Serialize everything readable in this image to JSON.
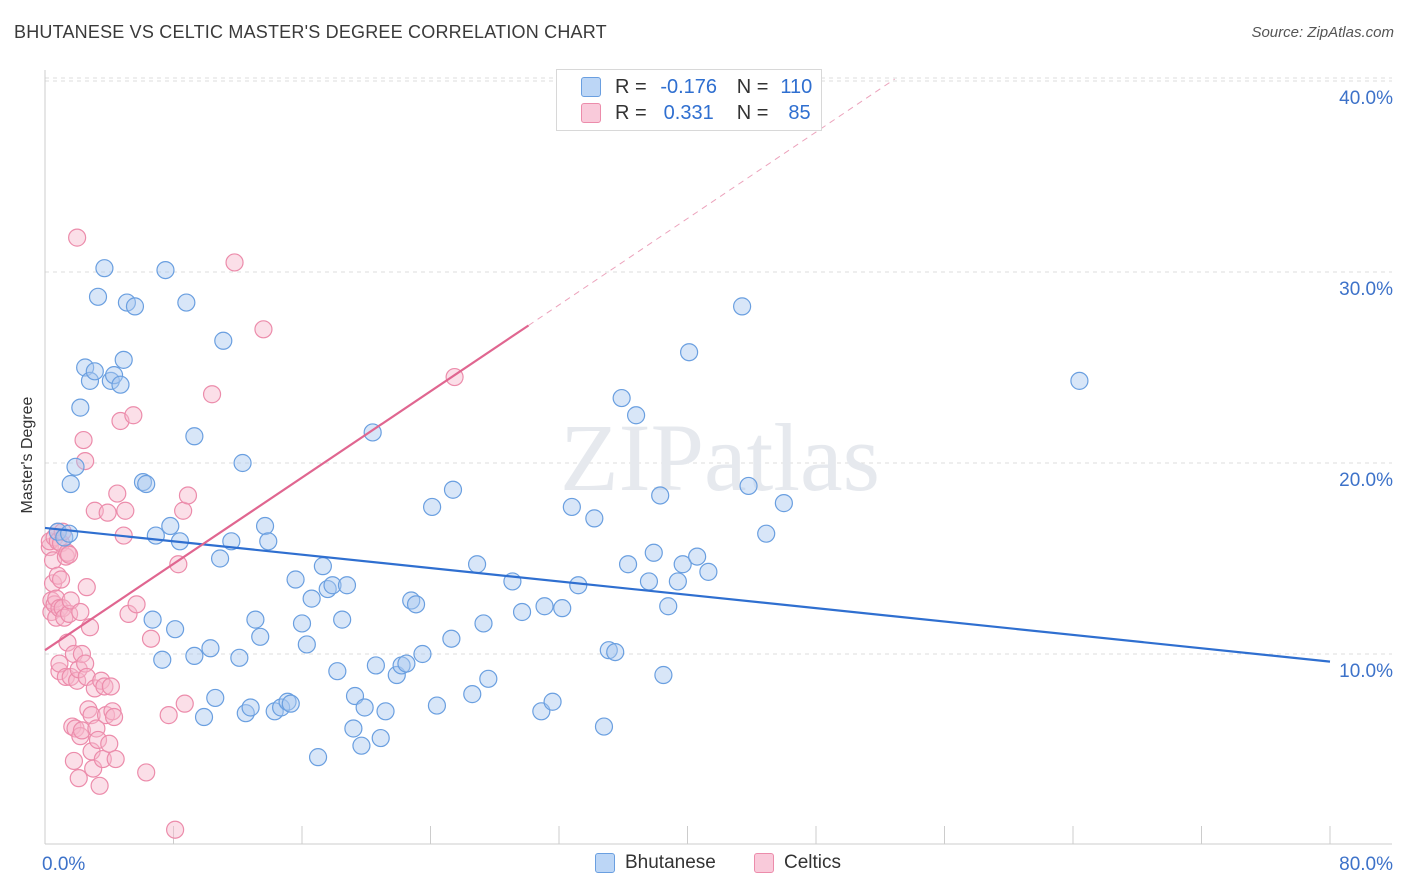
{
  "header": {
    "title": "BHUTANESE VS CELTIC MASTER'S DEGREE CORRELATION CHART",
    "source": "Source: ZipAtlas.com"
  },
  "legend": {
    "rows": [
      {
        "r_label": "R =",
        "r_value": "-0.176",
        "n_label": "N =",
        "n_value": "110"
      },
      {
        "r_label": "R =",
        "r_value": "0.331",
        "n_label": "N =",
        "n_value": "85"
      }
    ],
    "bottom": [
      "Bhutanese",
      "Celtics"
    ]
  },
  "colors": {
    "blue_fill": "#a8c8f0",
    "blue_stroke": "#6a9fe0",
    "blue_line": "#2f6fd0",
    "pink_fill": "#f6b8cc",
    "pink_stroke": "#ec8cab",
    "pink_line": "#e06690",
    "grid": "#dddddd",
    "tick_label": "#3d72c9"
  },
  "chart_data": {
    "type": "scatter",
    "title": "BHUTANESE VS CELTIC MASTER'S DEGREE CORRELATION CHART",
    "xlabel": "",
    "ylabel": "Master's Degree",
    "xlim": [
      0,
      80
    ],
    "ylim": [
      0,
      41
    ],
    "x_tick_labels": [
      "0.0%",
      "80.0%"
    ],
    "y_ticks": [
      10,
      20,
      30,
      40
    ],
    "y_tick_labels": [
      "10.0%",
      "20.0%",
      "30.0%",
      "40.0%"
    ],
    "watermark": "ZIPatlas",
    "series": [
      {
        "name": "Bhutanese",
        "r": -0.176,
        "n": 110,
        "trend": {
          "x0": 0,
          "y0": 16.6,
          "x1": 80,
          "y1": 9.6
        },
        "points": [
          [
            0.8,
            16.4
          ],
          [
            1.2,
            16.1
          ],
          [
            1.5,
            16.3
          ],
          [
            1.6,
            18.9
          ],
          [
            1.9,
            19.8
          ],
          [
            2.2,
            22.9
          ],
          [
            2.5,
            25.0
          ],
          [
            2.8,
            24.3
          ],
          [
            3.1,
            24.8
          ],
          [
            3.3,
            28.7
          ],
          [
            3.7,
            30.2
          ],
          [
            4.1,
            24.3
          ],
          [
            4.3,
            24.6
          ],
          [
            4.7,
            24.1
          ],
          [
            4.9,
            25.4
          ],
          [
            5.1,
            28.4
          ],
          [
            5.6,
            28.2
          ],
          [
            6.1,
            19.0
          ],
          [
            6.3,
            18.9
          ],
          [
            6.7,
            11.8
          ],
          [
            6.9,
            16.2
          ],
          [
            7.3,
            9.7
          ],
          [
            7.8,
            16.7
          ],
          [
            8.1,
            11.3
          ],
          [
            8.4,
            15.9
          ],
          [
            8.8,
            28.4
          ],
          [
            7.5,
            30.1
          ],
          [
            9.3,
            21.4
          ],
          [
            9.3,
            9.9
          ],
          [
            9.9,
            6.7
          ],
          [
            10.3,
            10.3
          ],
          [
            10.6,
            7.7
          ],
          [
            10.9,
            15.0
          ],
          [
            11.1,
            26.4
          ],
          [
            11.6,
            15.9
          ],
          [
            12.1,
            9.8
          ],
          [
            12.3,
            20.0
          ],
          [
            12.5,
            6.9
          ],
          [
            12.8,
            7.2
          ],
          [
            13.1,
            11.8
          ],
          [
            13.4,
            10.9
          ],
          [
            13.7,
            16.7
          ],
          [
            13.9,
            15.9
          ],
          [
            14.3,
            7.0
          ],
          [
            14.7,
            7.2
          ],
          [
            15.1,
            7.5
          ],
          [
            15.3,
            7.4
          ],
          [
            15.6,
            13.9
          ],
          [
            16.0,
            11.6
          ],
          [
            16.3,
            10.5
          ],
          [
            16.6,
            12.9
          ],
          [
            17.0,
            4.6
          ],
          [
            17.3,
            14.6
          ],
          [
            17.6,
            13.4
          ],
          [
            17.9,
            13.6
          ],
          [
            18.2,
            9.1
          ],
          [
            18.5,
            11.8
          ],
          [
            18.8,
            13.6
          ],
          [
            19.2,
            6.1
          ],
          [
            19.3,
            7.8
          ],
          [
            19.7,
            5.2
          ],
          [
            19.9,
            7.2
          ],
          [
            20.4,
            21.6
          ],
          [
            20.6,
            9.4
          ],
          [
            20.9,
            5.6
          ],
          [
            21.2,
            7.0
          ],
          [
            21.9,
            8.9
          ],
          [
            22.2,
            9.4
          ],
          [
            22.5,
            9.5
          ],
          [
            22.8,
            12.8
          ],
          [
            23.1,
            12.6
          ],
          [
            23.5,
            10.0
          ],
          [
            24.1,
            17.7
          ],
          [
            24.4,
            7.3
          ],
          [
            25.3,
            10.8
          ],
          [
            25.4,
            18.6
          ],
          [
            26.6,
            7.9
          ],
          [
            26.9,
            14.7
          ],
          [
            27.3,
            11.6
          ],
          [
            27.6,
            8.7
          ],
          [
            29.1,
            13.8
          ],
          [
            29.7,
            12.2
          ],
          [
            30.9,
            7.0
          ],
          [
            31.1,
            12.5
          ],
          [
            31.6,
            7.5
          ],
          [
            32.2,
            12.4
          ],
          [
            32.8,
            17.7
          ],
          [
            33.2,
            13.6
          ],
          [
            34.2,
            17.1
          ],
          [
            34.8,
            6.2
          ],
          [
            35.1,
            10.2
          ],
          [
            35.5,
            10.1
          ],
          [
            35.9,
            23.4
          ],
          [
            36.3,
            14.7
          ],
          [
            36.8,
            22.5
          ],
          [
            37.6,
            13.8
          ],
          [
            37.9,
            15.3
          ],
          [
            38.3,
            18.3
          ],
          [
            38.5,
            8.9
          ],
          [
            38.8,
            12.5
          ],
          [
            39.4,
            13.8
          ],
          [
            39.7,
            14.7
          ],
          [
            40.1,
            25.8
          ],
          [
            40.6,
            15.1
          ],
          [
            41.3,
            14.3
          ],
          [
            43.4,
            28.2
          ],
          [
            43.8,
            18.8
          ],
          [
            44.9,
            16.3
          ],
          [
            46.0,
            17.9
          ],
          [
            64.4,
            24.3
          ]
        ]
      },
      {
        "name": "Celtics",
        "r": 0.331,
        "n": 85,
        "trend": {
          "x0": 0,
          "y0": 10.2,
          "x1": 30.1,
          "y1": 27.2
        },
        "trend_extension": {
          "x0": 30.1,
          "y0": 27.2,
          "x1": 52.9,
          "y1": 40.1
        },
        "points": [
          [
            0.3,
            15.6
          ],
          [
            0.3,
            15.9
          ],
          [
            0.4,
            12.2
          ],
          [
            0.4,
            12.8
          ],
          [
            0.5,
            14.9
          ],
          [
            0.5,
            13.7
          ],
          [
            0.6,
            12.6
          ],
          [
            0.6,
            16.1
          ],
          [
            0.7,
            12.9
          ],
          [
            0.7,
            11.9
          ],
          [
            0.8,
            16.4
          ],
          [
            0.8,
            14.1
          ],
          [
            0.8,
            15.9
          ],
          [
            0.9,
            12.4
          ],
          [
            0.9,
            9.1
          ],
          [
            0.9,
            9.5
          ],
          [
            1.0,
            13.9
          ],
          [
            1.0,
            15.8
          ],
          [
            1.1,
            16.4
          ],
          [
            1.1,
            12.4
          ],
          [
            1.2,
            11.9
          ],
          [
            1.3,
            15.1
          ],
          [
            1.3,
            8.8
          ],
          [
            1.4,
            15.3
          ],
          [
            1.4,
            10.6
          ],
          [
            1.5,
            12.1
          ],
          [
            1.5,
            15.2
          ],
          [
            1.6,
            8.8
          ],
          [
            1.6,
            12.8
          ],
          [
            1.7,
            6.2
          ],
          [
            1.8,
            10.0
          ],
          [
            1.8,
            4.4
          ],
          [
            1.9,
            6.1
          ],
          [
            2.0,
            8.6
          ],
          [
            2.1,
            3.5
          ],
          [
            2.1,
            9.2
          ],
          [
            2.2,
            12.2
          ],
          [
            2.2,
            5.7
          ],
          [
            2.3,
            10.0
          ],
          [
            2.3,
            6.0
          ],
          [
            2.4,
            21.2
          ],
          [
            2.5,
            20.1
          ],
          [
            2.5,
            9.5
          ],
          [
            2.6,
            8.8
          ],
          [
            2.6,
            13.5
          ],
          [
            2.7,
            7.1
          ],
          [
            2.8,
            11.4
          ],
          [
            2.9,
            4.9
          ],
          [
            2.9,
            6.8
          ],
          [
            3.0,
            4.0
          ],
          [
            3.1,
            8.2
          ],
          [
            3.1,
            17.5
          ],
          [
            3.2,
            6.1
          ],
          [
            3.3,
            5.5
          ],
          [
            3.4,
            3.1
          ],
          [
            3.5,
            8.6
          ],
          [
            3.6,
            4.5
          ],
          [
            3.7,
            8.3
          ],
          [
            3.8,
            6.8
          ],
          [
            3.9,
            17.4
          ],
          [
            4.0,
            5.3
          ],
          [
            4.1,
            8.3
          ],
          [
            4.2,
            7.0
          ],
          [
            4.3,
            6.7
          ],
          [
            4.4,
            4.5
          ],
          [
            4.5,
            18.4
          ],
          [
            4.7,
            22.2
          ],
          [
            4.9,
            16.2
          ],
          [
            5.0,
            17.5
          ],
          [
            5.2,
            12.1
          ],
          [
            5.5,
            22.5
          ],
          [
            5.7,
            12.6
          ],
          [
            6.3,
            3.8
          ],
          [
            6.6,
            10.8
          ],
          [
            7.7,
            6.8
          ],
          [
            8.1,
            0.8
          ],
          [
            8.3,
            14.7
          ],
          [
            8.6,
            17.5
          ],
          [
            8.7,
            7.4
          ],
          [
            8.9,
            18.3
          ],
          [
            10.4,
            23.6
          ],
          [
            11.8,
            30.5
          ],
          [
            13.6,
            27.0
          ],
          [
            25.5,
            24.5
          ],
          [
            2.0,
            31.8
          ]
        ]
      }
    ]
  }
}
